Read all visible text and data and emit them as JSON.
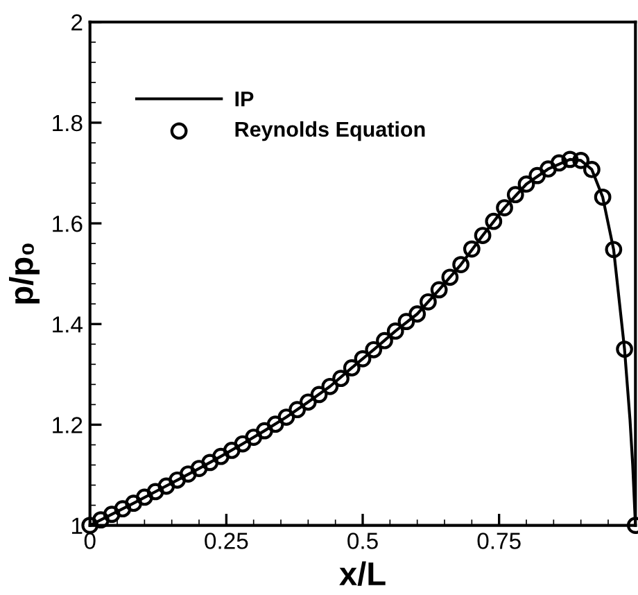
{
  "chart_data": {
    "type": "line",
    "xlabel": "x/L",
    "ylabel": "p/p₀",
    "xlim": [
      0,
      1
    ],
    "ylim": [
      1,
      2
    ],
    "xticks": [
      0,
      0.25,
      0.5,
      0.75,
      {
        "value": 1,
        "label": null
      }
    ],
    "yticks": [
      1,
      1.2,
      1.4,
      1.6,
      1.8,
      2
    ],
    "legend": "top left",
    "grid": false,
    "series": [
      {
        "name": "IP",
        "color": "#000000",
        "line_style": "solid",
        "marker": "none",
        "x": [
          0,
          0.04,
          0.08,
          0.12,
          0.16,
          0.2,
          0.24,
          0.28,
          0.32,
          0.36,
          0.4,
          0.44,
          0.48,
          0.52,
          0.56,
          0.6,
          0.64,
          0.68,
          0.72,
          0.76,
          0.8,
          0.84,
          0.88,
          0.9,
          0.92,
          0.94,
          0.96,
          0.98,
          0.99,
          0.995,
          1.0
        ],
        "values": [
          1.0,
          1.022,
          1.044,
          1.067,
          1.09,
          1.113,
          1.137,
          1.162,
          1.188,
          1.215,
          1.245,
          1.276,
          1.313,
          1.349,
          1.386,
          1.42,
          1.468,
          1.518,
          1.576,
          1.631,
          1.678,
          1.708,
          1.727,
          1.725,
          1.707,
          1.652,
          1.548,
          1.35,
          1.21,
          1.12,
          1.0
        ]
      },
      {
        "name": "Reynolds Equation",
        "type": "scatter",
        "color": "#000000",
        "marker": "circle",
        "x": [
          0,
          0.02,
          0.04,
          0.06,
          0.08,
          0.1,
          0.12,
          0.14,
          0.16,
          0.18,
          0.2,
          0.22,
          0.24,
          0.26,
          0.28,
          0.3,
          0.32,
          0.34,
          0.36,
          0.38,
          0.4,
          0.42,
          0.44,
          0.46,
          0.48,
          0.5,
          0.52,
          0.54,
          0.56,
          0.58,
          0.6,
          0.62,
          0.64,
          0.66,
          0.68,
          0.7,
          0.72,
          0.74,
          0.76,
          0.78,
          0.8,
          0.82,
          0.84,
          0.86,
          0.88,
          0.9,
          0.92,
          0.94,
          0.96,
          0.98,
          1.0
        ],
        "values": [
          1.0,
          1.011,
          1.022,
          1.033,
          1.044,
          1.056,
          1.067,
          1.078,
          1.09,
          1.102,
          1.113,
          1.125,
          1.137,
          1.149,
          1.162,
          1.175,
          1.188,
          1.201,
          1.215,
          1.23,
          1.245,
          1.26,
          1.276,
          1.292,
          1.313,
          1.331,
          1.349,
          1.367,
          1.386,
          1.405,
          1.42,
          1.444,
          1.468,
          1.493,
          1.518,
          1.549,
          1.576,
          1.604,
          1.631,
          1.657,
          1.678,
          1.695,
          1.708,
          1.72,
          1.727,
          1.725,
          1.707,
          1.652,
          1.548,
          1.35,
          1.0
        ]
      }
    ]
  }
}
